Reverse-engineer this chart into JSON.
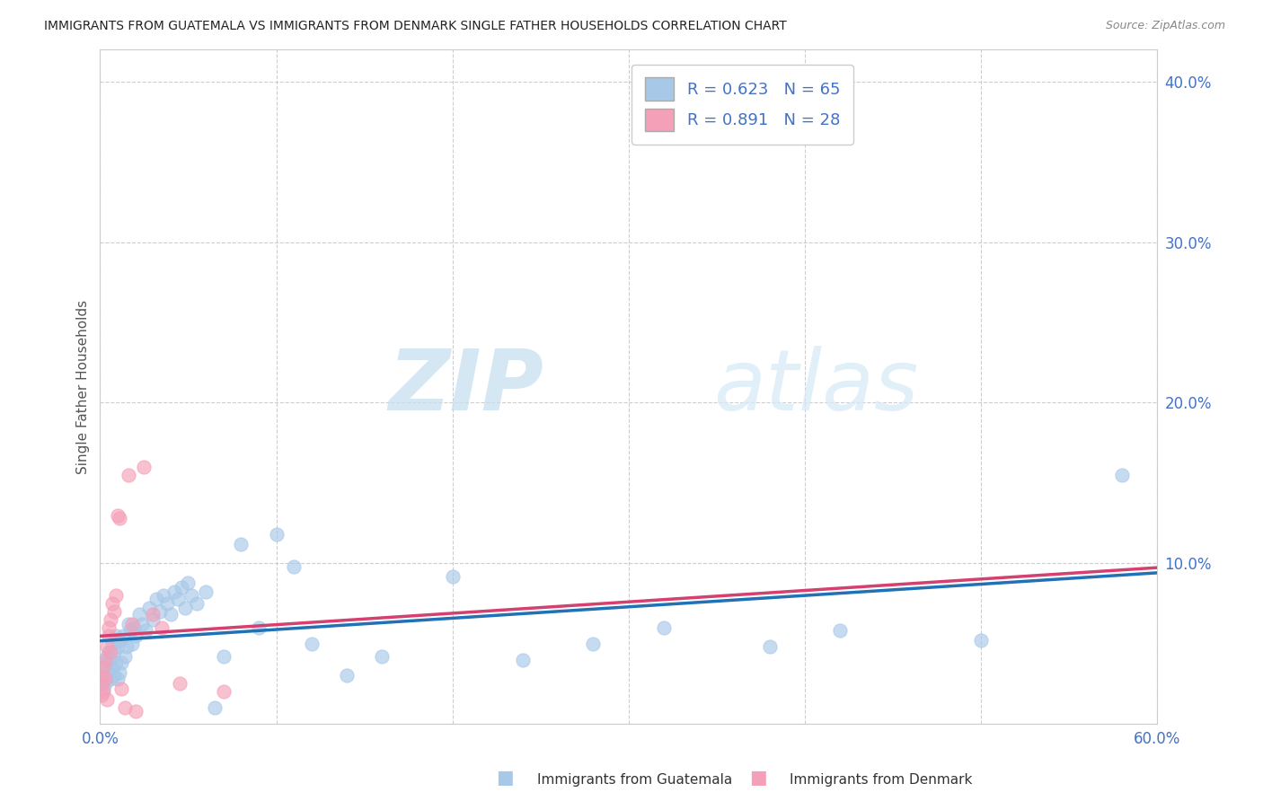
{
  "title": "IMMIGRANTS FROM GUATEMALA VS IMMIGRANTS FROM DENMARK SINGLE FATHER HOUSEHOLDS CORRELATION CHART",
  "source": "Source: ZipAtlas.com",
  "xlabel_blue": "Immigrants from Guatemala",
  "xlabel_pink": "Immigrants from Denmark",
  "ylabel": "Single Father Households",
  "xlim": [
    0.0,
    0.6
  ],
  "ylim": [
    0.0,
    0.42
  ],
  "xticks": [
    0.0,
    0.1,
    0.2,
    0.3,
    0.4,
    0.5,
    0.6
  ],
  "yticks": [
    0.0,
    0.1,
    0.2,
    0.3,
    0.4
  ],
  "ytick_labels_right": [
    "",
    "10.0%",
    "20.0%",
    "30.0%",
    "40.0%"
  ],
  "xtick_labels_show": [
    "0.0%",
    "",
    "",
    "",
    "",
    "",
    "60.0%"
  ],
  "R_blue": 0.623,
  "N_blue": 65,
  "R_pink": 0.891,
  "N_pink": 28,
  "color_blue": "#a8c8e8",
  "color_pink": "#f4a0b8",
  "line_color_blue": "#2171b5",
  "line_color_pink": "#d44070",
  "watermark_zip": "ZIP",
  "watermark_atlas": "atlas",
  "background_color": "#ffffff",
  "grid_color": "#c8c8c8",
  "blue_points_x": [
    0.001,
    0.002,
    0.002,
    0.003,
    0.003,
    0.004,
    0.004,
    0.005,
    0.005,
    0.006,
    0.006,
    0.007,
    0.007,
    0.008,
    0.008,
    0.009,
    0.009,
    0.01,
    0.01,
    0.011,
    0.011,
    0.012,
    0.013,
    0.014,
    0.015,
    0.016,
    0.017,
    0.018,
    0.019,
    0.02,
    0.022,
    0.024,
    0.026,
    0.028,
    0.03,
    0.032,
    0.034,
    0.036,
    0.038,
    0.04,
    0.042,
    0.044,
    0.046,
    0.048,
    0.05,
    0.052,
    0.055,
    0.06,
    0.065,
    0.07,
    0.08,
    0.09,
    0.1,
    0.11,
    0.12,
    0.14,
    0.16,
    0.2,
    0.24,
    0.28,
    0.32,
    0.38,
    0.42,
    0.5,
    0.58
  ],
  "blue_points_y": [
    0.028,
    0.022,
    0.035,
    0.03,
    0.025,
    0.038,
    0.042,
    0.032,
    0.045,
    0.028,
    0.04,
    0.035,
    0.05,
    0.03,
    0.045,
    0.038,
    0.055,
    0.028,
    0.048,
    0.032,
    0.052,
    0.038,
    0.055,
    0.042,
    0.048,
    0.062,
    0.058,
    0.05,
    0.06,
    0.055,
    0.068,
    0.062,
    0.058,
    0.072,
    0.065,
    0.078,
    0.07,
    0.08,
    0.075,
    0.068,
    0.082,
    0.078,
    0.085,
    0.072,
    0.088,
    0.08,
    0.075,
    0.082,
    0.01,
    0.042,
    0.112,
    0.06,
    0.118,
    0.098,
    0.05,
    0.03,
    0.042,
    0.092,
    0.04,
    0.05,
    0.06,
    0.048,
    0.058,
    0.052,
    0.155
  ],
  "pink_points_x": [
    0.001,
    0.001,
    0.001,
    0.002,
    0.002,
    0.003,
    0.003,
    0.004,
    0.004,
    0.005,
    0.005,
    0.006,
    0.006,
    0.007,
    0.008,
    0.009,
    0.01,
    0.011,
    0.012,
    0.014,
    0.016,
    0.018,
    0.02,
    0.025,
    0.03,
    0.035,
    0.045,
    0.07
  ],
  "pink_points_y": [
    0.018,
    0.025,
    0.03,
    0.02,
    0.035,
    0.028,
    0.04,
    0.048,
    0.015,
    0.055,
    0.06,
    0.065,
    0.045,
    0.075,
    0.07,
    0.08,
    0.13,
    0.128,
    0.022,
    0.01,
    0.155,
    0.062,
    0.008,
    0.16,
    0.068,
    0.06,
    0.025,
    0.02
  ]
}
